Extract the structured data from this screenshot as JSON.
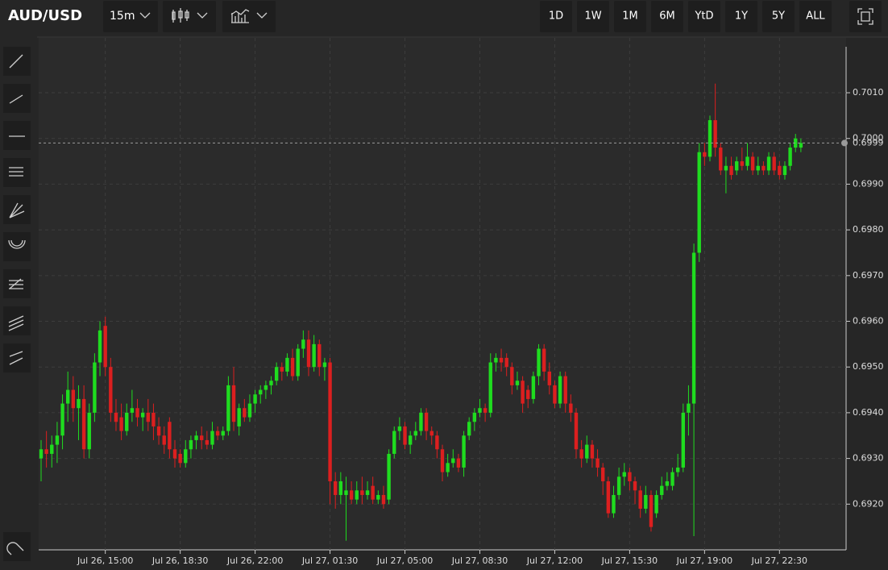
{
  "toolbar": {
    "interval": "15m",
    "ranges": [
      "1D",
      "1W",
      "1M",
      "6M",
      "YtD",
      "1Y",
      "5Y",
      "ALL"
    ]
  },
  "chart_data": {
    "type": "candlestick",
    "title": "AUD/USD",
    "up_color": "#1fdc1f",
    "down_color": "#dc1f1f",
    "grid": true,
    "ylim": [
      0.691,
      0.7022
    ],
    "yticks": [
      {
        "value": 0.692,
        "label": "0.6920"
      },
      {
        "value": 0.693,
        "label": "0.6930"
      },
      {
        "value": 0.694,
        "label": "0.6940"
      },
      {
        "value": 0.695,
        "label": "0.6950"
      },
      {
        "value": 0.696,
        "label": "0.6960"
      },
      {
        "value": 0.697,
        "label": "0.6970"
      },
      {
        "value": 0.698,
        "label": "0.6980"
      },
      {
        "value": 0.699,
        "label": "0.6990"
      },
      {
        "value": 0.7,
        "label": "0.7000"
      },
      {
        "value": 0.701,
        "label": "0.7010"
      }
    ],
    "last_price": 0.6999,
    "categories": [
      null,
      null,
      null,
      null,
      null,
      null,
      null,
      null,
      null,
      null,
      null,
      null,
      "Jul 26, 15:00",
      null,
      null,
      null,
      null,
      null,
      null,
      null,
      null,
      null,
      null,
      null,
      null,
      null,
      "Jul 26, 18:30",
      null,
      null,
      null,
      null,
      null,
      null,
      null,
      null,
      null,
      null,
      null,
      null,
      null,
      "Jul 26, 22:00",
      null,
      null,
      null,
      null,
      null,
      null,
      null,
      null,
      null,
      null,
      null,
      null,
      null,
      "Jul 27, 01:30",
      null,
      null,
      null,
      null,
      null,
      null,
      null,
      null,
      null,
      null,
      null,
      null,
      null,
      "Jul 27, 05:00",
      null,
      null,
      null,
      null,
      null,
      null,
      null,
      null,
      null,
      null,
      null,
      null,
      null,
      "Jul 27, 08:30",
      null,
      null,
      null,
      null,
      null,
      null,
      null,
      null,
      null,
      null,
      null,
      null,
      null,
      "Jul 27, 12:00",
      null,
      null,
      null,
      null,
      null,
      null,
      null,
      null,
      null,
      null,
      null,
      null,
      null,
      "Jul 27, 15:30",
      null,
      null,
      null,
      null,
      null,
      null,
      null,
      null,
      null,
      null,
      null,
      null,
      null,
      "Jul 27, 19:00",
      null,
      null,
      null,
      null,
      null,
      null,
      null,
      null,
      null,
      null,
      null,
      null,
      null,
      "Jul 27, 22:30",
      null,
      null,
      null,
      null
    ],
    "candles": [
      {
        "o": 0.693,
        "h": 0.6934,
        "l": 0.6925,
        "c": 0.6932
      },
      {
        "o": 0.6932,
        "h": 0.6936,
        "l": 0.6928,
        "c": 0.6931
      },
      {
        "o": 0.6931,
        "h": 0.6935,
        "l": 0.6928,
        "c": 0.6933
      },
      {
        "o": 0.6933,
        "h": 0.6938,
        "l": 0.6929,
        "c": 0.6935
      },
      {
        "o": 0.6935,
        "h": 0.6944,
        "l": 0.6932,
        "c": 0.6942
      },
      {
        "o": 0.6942,
        "h": 0.6949,
        "l": 0.6938,
        "c": 0.6945
      },
      {
        "o": 0.6945,
        "h": 0.6948,
        "l": 0.6938,
        "c": 0.6941
      },
      {
        "o": 0.6941,
        "h": 0.6946,
        "l": 0.6934,
        "c": 0.6943
      },
      {
        "o": 0.6943,
        "h": 0.6946,
        "l": 0.693,
        "c": 0.6932
      },
      {
        "o": 0.6932,
        "h": 0.6942,
        "l": 0.693,
        "c": 0.694
      },
      {
        "o": 0.694,
        "h": 0.6953,
        "l": 0.6938,
        "c": 0.6951
      },
      {
        "o": 0.6951,
        "h": 0.696,
        "l": 0.6948,
        "c": 0.6958
      },
      {
        "o": 0.6959,
        "h": 0.6961,
        "l": 0.6948,
        "c": 0.695
      },
      {
        "o": 0.695,
        "h": 0.6952,
        "l": 0.6938,
        "c": 0.694
      },
      {
        "o": 0.694,
        "h": 0.6943,
        "l": 0.6936,
        "c": 0.6938
      },
      {
        "o": 0.6939,
        "h": 0.6942,
        "l": 0.6934,
        "c": 0.6936
      },
      {
        "o": 0.6936,
        "h": 0.6942,
        "l": 0.6935,
        "c": 0.694
      },
      {
        "o": 0.694,
        "h": 0.6945,
        "l": 0.6938,
        "c": 0.6941
      },
      {
        "o": 0.6941,
        "h": 0.6943,
        "l": 0.6937,
        "c": 0.6939
      },
      {
        "o": 0.6939,
        "h": 0.6941,
        "l": 0.6936,
        "c": 0.694
      },
      {
        "o": 0.694,
        "h": 0.6943,
        "l": 0.6936,
        "c": 0.6938
      },
      {
        "o": 0.694,
        "h": 0.6942,
        "l": 0.6934,
        "c": 0.6937
      },
      {
        "o": 0.6937,
        "h": 0.6939,
        "l": 0.6933,
        "c": 0.6935
      },
      {
        "o": 0.6935,
        "h": 0.6937,
        "l": 0.6931,
        "c": 0.6933
      },
      {
        "o": 0.6938,
        "h": 0.6939,
        "l": 0.693,
        "c": 0.6932
      },
      {
        "o": 0.6932,
        "h": 0.6934,
        "l": 0.6928,
        "c": 0.693
      },
      {
        "o": 0.6931,
        "h": 0.6932,
        "l": 0.6928,
        "c": 0.6929
      },
      {
        "o": 0.6929,
        "h": 0.6934,
        "l": 0.6928,
        "c": 0.6932
      },
      {
        "o": 0.6932,
        "h": 0.6935,
        "l": 0.693,
        "c": 0.6934
      },
      {
        "o": 0.6934,
        "h": 0.6936,
        "l": 0.6932,
        "c": 0.6935
      },
      {
        "o": 0.6935,
        "h": 0.6937,
        "l": 0.6932,
        "c": 0.6934
      },
      {
        "o": 0.6934,
        "h": 0.6936,
        "l": 0.6932,
        "c": 0.6933
      },
      {
        "o": 0.6933,
        "h": 0.6938,
        "l": 0.6932,
        "c": 0.6936
      },
      {
        "o": 0.6936,
        "h": 0.6937,
        "l": 0.6934,
        "c": 0.6935
      },
      {
        "o": 0.6935,
        "h": 0.6937,
        "l": 0.6934,
        "c": 0.6936
      },
      {
        "o": 0.6936,
        "h": 0.6948,
        "l": 0.6935,
        "c": 0.6946
      },
      {
        "o": 0.6946,
        "h": 0.695,
        "l": 0.6936,
        "c": 0.6938
      },
      {
        "o": 0.6937,
        "h": 0.6942,
        "l": 0.6935,
        "c": 0.6941
      },
      {
        "o": 0.6941,
        "h": 0.6943,
        "l": 0.6938,
        "c": 0.6939
      },
      {
        "o": 0.6939,
        "h": 0.6944,
        "l": 0.6938,
        "c": 0.6942
      },
      {
        "o": 0.6942,
        "h": 0.6945,
        "l": 0.694,
        "c": 0.6944
      },
      {
        "o": 0.6944,
        "h": 0.6946,
        "l": 0.6942,
        "c": 0.6945
      },
      {
        "o": 0.6945,
        "h": 0.6947,
        "l": 0.6943,
        "c": 0.6946
      },
      {
        "o": 0.6946,
        "h": 0.6948,
        "l": 0.6944,
        "c": 0.6947
      },
      {
        "o": 0.6947,
        "h": 0.6951,
        "l": 0.6946,
        "c": 0.695
      },
      {
        "o": 0.695,
        "h": 0.6951,
        "l": 0.6947,
        "c": 0.6949
      },
      {
        "o": 0.6949,
        "h": 0.6953,
        "l": 0.6948,
        "c": 0.6952
      },
      {
        "o": 0.6952,
        "h": 0.6954,
        "l": 0.6947,
        "c": 0.6948
      },
      {
        "o": 0.6948,
        "h": 0.6955,
        "l": 0.6947,
        "c": 0.6954
      },
      {
        "o": 0.6954,
        "h": 0.6958,
        "l": 0.6952,
        "c": 0.6956
      },
      {
        "o": 0.6956,
        "h": 0.6958,
        "l": 0.6948,
        "c": 0.695
      },
      {
        "o": 0.695,
        "h": 0.6957,
        "l": 0.6949,
        "c": 0.6955
      },
      {
        "o": 0.6955,
        "h": 0.6956,
        "l": 0.6948,
        "c": 0.695
      },
      {
        "o": 0.695,
        "h": 0.6952,
        "l": 0.6947,
        "c": 0.6951
      },
      {
        "o": 0.6951,
        "h": 0.6952,
        "l": 0.692,
        "c": 0.6925
      },
      {
        "o": 0.6925,
        "h": 0.6927,
        "l": 0.6919,
        "c": 0.6922
      },
      {
        "o": 0.6922,
        "h": 0.6927,
        "l": 0.692,
        "c": 0.6925
      },
      {
        "o": 0.6922,
        "h": 0.6926,
        "l": 0.6912,
        "c": 0.6923
      },
      {
        "o": 0.6923,
        "h": 0.6925,
        "l": 0.692,
        "c": 0.6921
      },
      {
        "o": 0.6921,
        "h": 0.6925,
        "l": 0.692,
        "c": 0.6923
      },
      {
        "o": 0.6923,
        "h": 0.6926,
        "l": 0.692,
        "c": 0.6922
      },
      {
        "o": 0.6922,
        "h": 0.6925,
        "l": 0.6921,
        "c": 0.6923
      },
      {
        "o": 0.6924,
        "h": 0.6926,
        "l": 0.692,
        "c": 0.6921
      },
      {
        "o": 0.6921,
        "h": 0.6923,
        "l": 0.692,
        "c": 0.6922
      },
      {
        "o": 0.6922,
        "h": 0.6924,
        "l": 0.6919,
        "c": 0.692
      },
      {
        "o": 0.6921,
        "h": 0.6932,
        "l": 0.692,
        "c": 0.6931
      },
      {
        "o": 0.6931,
        "h": 0.6937,
        "l": 0.693,
        "c": 0.6936
      },
      {
        "o": 0.6936,
        "h": 0.6939,
        "l": 0.6934,
        "c": 0.6937
      },
      {
        "o": 0.6937,
        "h": 0.6938,
        "l": 0.6932,
        "c": 0.6933
      },
      {
        "o": 0.6933,
        "h": 0.6936,
        "l": 0.6931,
        "c": 0.6935
      },
      {
        "o": 0.6935,
        "h": 0.6938,
        "l": 0.6934,
        "c": 0.6936
      },
      {
        "o": 0.6936,
        "h": 0.6941,
        "l": 0.6935,
        "c": 0.694
      },
      {
        "o": 0.694,
        "h": 0.6941,
        "l": 0.6934,
        "c": 0.6936
      },
      {
        "o": 0.6936,
        "h": 0.6937,
        "l": 0.6933,
        "c": 0.6935
      },
      {
        "o": 0.6935,
        "h": 0.6936,
        "l": 0.693,
        "c": 0.6932
      },
      {
        "o": 0.6932,
        "h": 0.6933,
        "l": 0.6925,
        "c": 0.6927
      },
      {
        "o": 0.6927,
        "h": 0.6931,
        "l": 0.6926,
        "c": 0.6929
      },
      {
        "o": 0.6929,
        "h": 0.6932,
        "l": 0.6928,
        "c": 0.693
      },
      {
        "o": 0.693,
        "h": 0.6931,
        "l": 0.6927,
        "c": 0.6928
      },
      {
        "o": 0.6928,
        "h": 0.6936,
        "l": 0.6926,
        "c": 0.6935
      },
      {
        "o": 0.6935,
        "h": 0.6939,
        "l": 0.6934,
        "c": 0.6938
      },
      {
        "o": 0.6938,
        "h": 0.6941,
        "l": 0.6936,
        "c": 0.694
      },
      {
        "o": 0.694,
        "h": 0.6943,
        "l": 0.6939,
        "c": 0.6941
      },
      {
        "o": 0.6941,
        "h": 0.6942,
        "l": 0.6938,
        "c": 0.694
      },
      {
        "o": 0.694,
        "h": 0.6953,
        "l": 0.6939,
        "c": 0.6951
      },
      {
        "o": 0.6951,
        "h": 0.6953,
        "l": 0.6949,
        "c": 0.6952
      },
      {
        "o": 0.6952,
        "h": 0.6954,
        "l": 0.6949,
        "c": 0.6951
      },
      {
        "o": 0.6952,
        "h": 0.6953,
        "l": 0.6948,
        "c": 0.695
      },
      {
        "o": 0.695,
        "h": 0.6951,
        "l": 0.6944,
        "c": 0.6946
      },
      {
        "o": 0.6946,
        "h": 0.6949,
        "l": 0.6945,
        "c": 0.6947
      },
      {
        "o": 0.6947,
        "h": 0.6948,
        "l": 0.694,
        "c": 0.6942
      },
      {
        "o": 0.6945,
        "h": 0.6946,
        "l": 0.6941,
        "c": 0.6943
      },
      {
        "o": 0.6943,
        "h": 0.6949,
        "l": 0.6942,
        "c": 0.6948
      },
      {
        "o": 0.6948,
        "h": 0.6955,
        "l": 0.6946,
        "c": 0.6954
      },
      {
        "o": 0.6954,
        "h": 0.6955,
        "l": 0.6947,
        "c": 0.6949
      },
      {
        "o": 0.6949,
        "h": 0.6951,
        "l": 0.6944,
        "c": 0.6946
      },
      {
        "o": 0.6946,
        "h": 0.6947,
        "l": 0.6941,
        "c": 0.6942
      },
      {
        "o": 0.6942,
        "h": 0.6949,
        "l": 0.6941,
        "c": 0.6948
      },
      {
        "o": 0.6948,
        "h": 0.6949,
        "l": 0.694,
        "c": 0.6942
      },
      {
        "o": 0.6942,
        "h": 0.6944,
        "l": 0.6938,
        "c": 0.694
      },
      {
        "o": 0.694,
        "h": 0.6941,
        "l": 0.693,
        "c": 0.6932
      },
      {
        "o": 0.6932,
        "h": 0.6934,
        "l": 0.6928,
        "c": 0.693
      },
      {
        "o": 0.693,
        "h": 0.6935,
        "l": 0.6929,
        "c": 0.6933
      },
      {
        "o": 0.6933,
        "h": 0.6934,
        "l": 0.6928,
        "c": 0.693
      },
      {
        "o": 0.693,
        "h": 0.6932,
        "l": 0.6926,
        "c": 0.6928
      },
      {
        "o": 0.6928,
        "h": 0.6929,
        "l": 0.6922,
        "c": 0.6925
      },
      {
        "o": 0.6925,
        "h": 0.6926,
        "l": 0.6917,
        "c": 0.6918
      },
      {
        "o": 0.6918,
        "h": 0.6924,
        "l": 0.6917,
        "c": 0.6922
      },
      {
        "o": 0.6922,
        "h": 0.6928,
        "l": 0.6921,
        "c": 0.6926
      },
      {
        "o": 0.6926,
        "h": 0.6929,
        "l": 0.6924,
        "c": 0.6927
      },
      {
        "o": 0.6927,
        "h": 0.6928,
        "l": 0.6923,
        "c": 0.6925
      },
      {
        "o": 0.6925,
        "h": 0.6926,
        "l": 0.692,
        "c": 0.6923
      },
      {
        "o": 0.6923,
        "h": 0.6924,
        "l": 0.6917,
        "c": 0.6919
      },
      {
        "o": 0.6919,
        "h": 0.6924,
        "l": 0.6918,
        "c": 0.6922
      },
      {
        "o": 0.6922,
        "h": 0.6923,
        "l": 0.6914,
        "c": 0.6915
      },
      {
        "o": 0.6918,
        "h": 0.6923,
        "l": 0.6917,
        "c": 0.6922
      },
      {
        "o": 0.6922,
        "h": 0.6926,
        "l": 0.6921,
        "c": 0.6924
      },
      {
        "o": 0.6924,
        "h": 0.6927,
        "l": 0.6923,
        "c": 0.6925
      },
      {
        "o": 0.6924,
        "h": 0.6928,
        "l": 0.6923,
        "c": 0.6927
      },
      {
        "o": 0.6927,
        "h": 0.6931,
        "l": 0.6926,
        "c": 0.6928
      },
      {
        "o": 0.6928,
        "h": 0.6942,
        "l": 0.6927,
        "c": 0.694
      },
      {
        "o": 0.694,
        "h": 0.6946,
        "l": 0.6935,
        "c": 0.6942
      },
      {
        "o": 0.6942,
        "h": 0.6977,
        "l": 0.6913,
        "c": 0.6975
      },
      {
        "o": 0.6975,
        "h": 0.6999,
        "l": 0.6973,
        "c": 0.6997
      },
      {
        "o": 0.6997,
        "h": 0.6999,
        "l": 0.6994,
        "c": 0.6996
      },
      {
        "o": 0.6996,
        "h": 0.7005,
        "l": 0.6995,
        "c": 0.7004
      },
      {
        "o": 0.7004,
        "h": 0.7012,
        "l": 0.6996,
        "c": 0.6998
      },
      {
        "o": 0.6998,
        "h": 0.6999,
        "l": 0.6992,
        "c": 0.6993
      },
      {
        "o": 0.6993,
        "h": 0.6996,
        "l": 0.6988,
        "c": 0.6994
      },
      {
        "o": 0.6994,
        "h": 0.6996,
        "l": 0.6991,
        "c": 0.6992
      },
      {
        "o": 0.6993,
        "h": 0.6996,
        "l": 0.6992,
        "c": 0.6995
      },
      {
        "o": 0.6995,
        "h": 0.6998,
        "l": 0.6993,
        "c": 0.6994
      },
      {
        "o": 0.6994,
        "h": 0.6999,
        "l": 0.6993,
        "c": 0.6996
      },
      {
        "o": 0.6996,
        "h": 0.6997,
        "l": 0.6992,
        "c": 0.6993
      },
      {
        "o": 0.6993,
        "h": 0.6996,
        "l": 0.6992,
        "c": 0.6994
      },
      {
        "o": 0.6994,
        "h": 0.6995,
        "l": 0.6992,
        "c": 0.6993
      },
      {
        "o": 0.6993,
        "h": 0.6997,
        "l": 0.6992,
        "c": 0.6996
      },
      {
        "o": 0.6996,
        "h": 0.6997,
        "l": 0.6992,
        "c": 0.6993
      },
      {
        "o": 0.6994,
        "h": 0.6995,
        "l": 0.6991,
        "c": 0.6992
      },
      {
        "o": 0.6992,
        "h": 0.6995,
        "l": 0.6991,
        "c": 0.6994
      },
      {
        "o": 0.6994,
        "h": 0.6999,
        "l": 0.6993,
        "c": 0.6998
      },
      {
        "o": 0.6998,
        "h": 0.7001,
        "l": 0.6997,
        "c": 0.7
      },
      {
        "o": 0.6998,
        "h": 0.7,
        "l": 0.6997,
        "c": 0.6999
      }
    ]
  }
}
